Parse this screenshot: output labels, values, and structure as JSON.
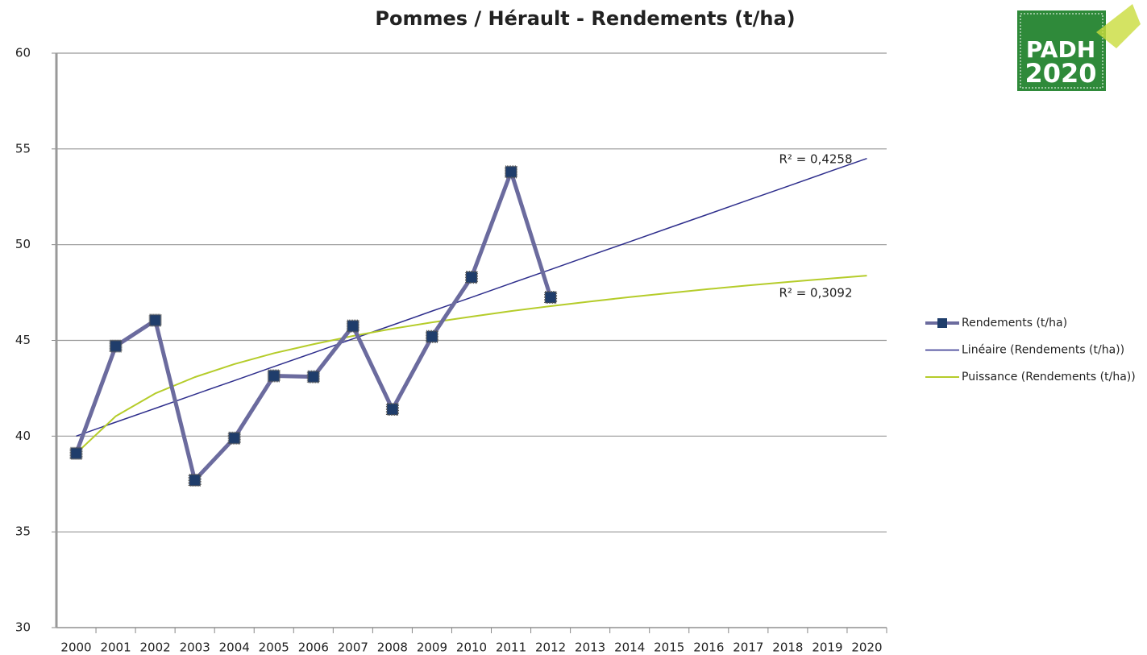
{
  "chart_data": {
    "type": "line",
    "title": "Pommes / Hérault - Rendements (t/ha)",
    "categories": [
      "2000",
      "2001",
      "2002",
      "2003",
      "2004",
      "2005",
      "2006",
      "2007",
      "2008",
      "2009",
      "2010",
      "2011",
      "2012",
      "2013",
      "2014",
      "2015",
      "2016",
      "2017",
      "2018",
      "2019",
      "2020"
    ],
    "series": [
      {
        "name": "Rendements (t/ha)",
        "color": "#6b6b9e",
        "marker_color": "#1f3d6b",
        "marker": "square",
        "width": 5,
        "values": [
          39.1,
          44.7,
          46.05,
          37.7,
          39.9,
          43.15,
          43.1,
          45.75,
          41.4,
          45.2,
          48.3,
          53.8,
          47.25,
          null,
          null,
          null,
          null,
          null,
          null,
          null,
          null
        ]
      },
      {
        "name": "Linéaire (Rendements (t/ha))",
        "color": "#2e2e8c",
        "width": 1.5,
        "values": [
          40,
          40.73,
          41.45,
          42.18,
          42.9,
          43.63,
          44.35,
          45.08,
          45.8,
          46.53,
          47.25,
          47.98,
          48.7,
          49.43,
          50.15,
          50.88,
          51.6,
          52.33,
          53.05,
          53.78,
          54.5
        ]
      },
      {
        "name": "Puissance (Rendements (t/ha))",
        "color": "#b5cc2a",
        "width": 2,
        "values": [
          39.1,
          41.04,
          42.23,
          43.08,
          43.76,
          44.33,
          44.8,
          45.23,
          45.61,
          45.94,
          46.24,
          46.53,
          46.79,
          47.03,
          47.26,
          47.47,
          47.68,
          47.87,
          48.05,
          48.22,
          48.38
        ]
      }
    ],
    "annotations": [
      "R² = 0,4258",
      "R² = 0,3092"
    ],
    "logo": [
      "PADH",
      "2020"
    ],
    "ylim": [
      30,
      60
    ],
    "yticks": [
      30,
      35,
      40,
      45,
      50,
      55,
      60
    ],
    "grid": true,
    "legend": "right"
  }
}
